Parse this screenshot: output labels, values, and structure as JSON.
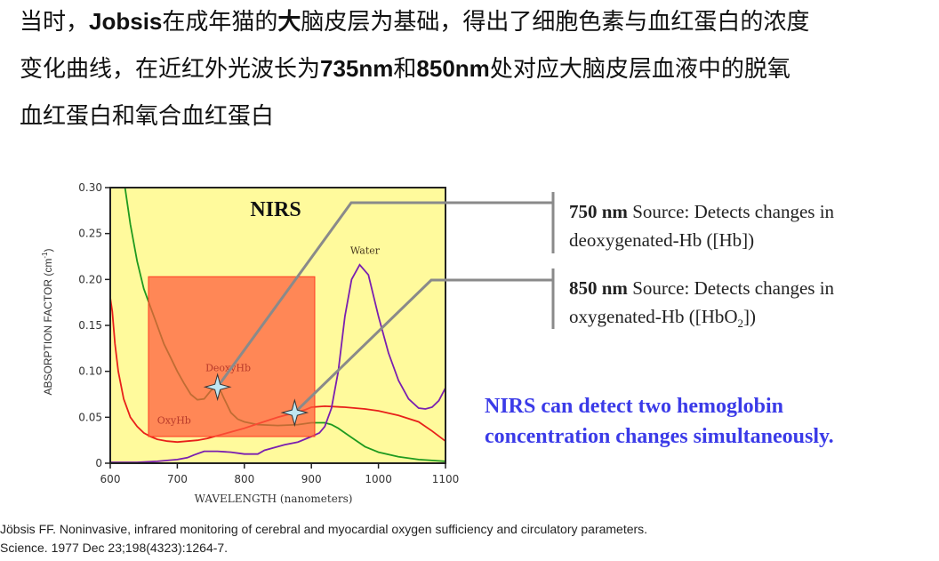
{
  "heading": {
    "lines": [
      [
        {
          "text": "当时，",
          "bold": false
        },
        {
          "text": "Jobsis",
          "bold": true
        },
        {
          "text": "在成年猫的",
          "bold": false
        },
        {
          "text": "大",
          "bold": true
        },
        {
          "text": "脑皮层为基础，得出了细胞色素与血红蛋白的浓度",
          "bold": false
        }
      ],
      [
        {
          "text": "变化曲线，在近红外光波长为",
          "bold": false
        },
        {
          "text": "735nm",
          "bold": true
        },
        {
          "text": "和",
          "bold": false
        },
        {
          "text": "850nm",
          "bold": true
        },
        {
          "text": "处对应大脑皮层血液中的脱氧",
          "bold": false
        }
      ],
      [
        {
          "text": "血红蛋白和氧合血红蛋白",
          "bold": false
        }
      ]
    ]
  },
  "annotations": {
    "source750": {
      "bold": "750 nm",
      "rest": " Source: Detects changes in",
      "line2": "deoxygenated-Hb ([Hb])"
    },
    "source850": {
      "bold": "850 nm",
      "rest": " Source: Detects changes in",
      "line2a": "oxygenated-Hb ([HbO",
      "sub": "2",
      "line2b": "])"
    },
    "summary_line1": "NIRS can detect two hemoglobin",
    "summary_line2": "concentration changes simultaneously."
  },
  "citation": {
    "line1": "Jöbsis FF. Noninvasive, infrared monitoring of cerebral and myocardial oxygen sufficiency and circulatory parameters.",
    "line2": "Science. 1977 Dec 23;198(4323):1264-7."
  },
  "chart_data": {
    "type": "line",
    "title": "NIRS",
    "xlabel": "WAVELENGTH (nanometers)",
    "ylabel": "ABSORPTION FACTOR (cm",
    "ylabel_sup": "-1",
    "ylabel_end": ")",
    "xlim": [
      600,
      1100
    ],
    "ylim": [
      0,
      0.3
    ],
    "xticks": [
      "600",
      "700",
      "800",
      "900",
      "1000",
      "1100"
    ],
    "yticks": [
      "0",
      "0.05",
      "0.10",
      "0.15",
      "0.20",
      "0.25",
      "0.30"
    ],
    "background": "#fffa9c",
    "highlight_region": {
      "x": [
        657,
        905
      ],
      "y": [
        0.029,
        0.203
      ],
      "color": "#ff5a3c"
    },
    "markers": [
      {
        "label": "750 nm source",
        "x": 760,
        "y": 0.083
      },
      {
        "label": "850 nm source",
        "x": 875,
        "y": 0.055
      }
    ],
    "series": [
      {
        "name": "DeoxyHb",
        "color": "#1f9a1f",
        "label_at": [
          742,
          0.1
        ],
        "x": [
          622,
          630,
          640,
          650,
          660,
          670,
          680,
          690,
          700,
          710,
          720,
          730,
          740,
          750,
          758,
          765,
          770,
          780,
          790,
          800,
          820,
          850,
          880,
          900,
          920,
          930,
          940,
          960,
          980,
          1000,
          1030,
          1060,
          1100
        ],
        "y": [
          0.3,
          0.26,
          0.22,
          0.19,
          0.17,
          0.15,
          0.13,
          0.115,
          0.1,
          0.087,
          0.075,
          0.069,
          0.07,
          0.079,
          0.083,
          0.078,
          0.07,
          0.055,
          0.048,
          0.045,
          0.042,
          0.041,
          0.042,
          0.044,
          0.044,
          0.042,
          0.038,
          0.028,
          0.018,
          0.012,
          0.007,
          0.004,
          0.002
        ]
      },
      {
        "name": "OxyHb",
        "color": "#e8201a",
        "label_at": [
          670,
          0.043
        ],
        "x": [
          600,
          603,
          607,
          612,
          620,
          630,
          640,
          650,
          660,
          670,
          685,
          700,
          715,
          730,
          745,
          760,
          780,
          800,
          820,
          850,
          870,
          890,
          900,
          920,
          950,
          980,
          1000,
          1030,
          1060,
          1080,
          1100
        ],
        "y": [
          0.18,
          0.165,
          0.13,
          0.1,
          0.07,
          0.05,
          0.04,
          0.033,
          0.029,
          0.026,
          0.024,
          0.023,
          0.024,
          0.025,
          0.027,
          0.03,
          0.034,
          0.038,
          0.043,
          0.05,
          0.054,
          0.058,
          0.061,
          0.062,
          0.061,
          0.059,
          0.057,
          0.052,
          0.045,
          0.035,
          0.024
        ]
      },
      {
        "name": "Water",
        "color": "#7a1fb0",
        "label_at": [
          958,
          0.228
        ],
        "x": [
          600,
          640,
          670,
          700,
          715,
          725,
          740,
          760,
          780,
          800,
          820,
          830,
          845,
          860,
          880,
          900,
          912,
          920,
          930,
          940,
          950,
          960,
          972,
          985,
          1000,
          1015,
          1030,
          1045,
          1060,
          1070,
          1080,
          1090,
          1100
        ],
        "y": [
          0.001,
          0.001,
          0.002,
          0.004,
          0.006,
          0.009,
          0.013,
          0.013,
          0.012,
          0.01,
          0.01,
          0.014,
          0.017,
          0.02,
          0.023,
          0.029,
          0.033,
          0.04,
          0.06,
          0.1,
          0.16,
          0.2,
          0.216,
          0.205,
          0.16,
          0.12,
          0.09,
          0.07,
          0.06,
          0.059,
          0.061,
          0.068,
          0.082
        ]
      }
    ]
  }
}
